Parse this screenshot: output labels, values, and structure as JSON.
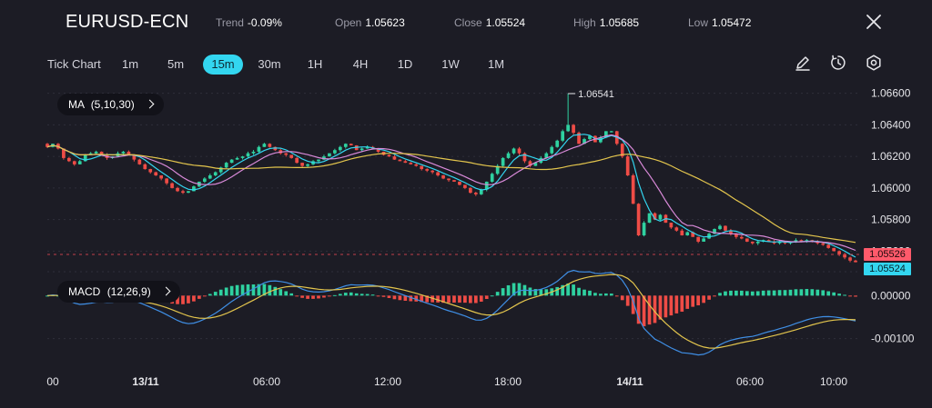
{
  "header": {
    "symbol": "EURUSD-ECN",
    "stats": [
      {
        "label": "Trend",
        "value": "-0.09%"
      },
      {
        "label": "Open",
        "value": "1.05623"
      },
      {
        "label": "Close",
        "value": "1.05524"
      },
      {
        "label": "High",
        "value": "1.05685"
      },
      {
        "label": "Low",
        "value": "1.05472"
      }
    ]
  },
  "toolbar": {
    "tick_chart": "Tick Chart",
    "timeframes": [
      "1m",
      "5m",
      "15m",
      "30m",
      "1H",
      "4H",
      "1D",
      "1W",
      "1M"
    ],
    "active_timeframe": "15m",
    "tools": [
      "pencil-icon",
      "timer-icon",
      "settings-icon"
    ]
  },
  "indicators": {
    "ma_label": "MA",
    "ma_params": "(5,10,30)",
    "macd_label": "MACD",
    "macd_params": "(12,26,9)"
  },
  "price_tags": {
    "bid": "1.05526",
    "ask": "1.05524",
    "peak_label": "1.06541"
  },
  "colors": {
    "background": "#1c1c25",
    "up": "#2fd1a0",
    "down": "#ef4c46",
    "ma_fast": "#33d6f0",
    "ma_mid": "#d98ad9",
    "ma_slow": "#e3c54d",
    "macd_line": "#3f8fe6",
    "signal_line": "#e3c54d",
    "bid_tag": "#ff5a6b",
    "ask_tag": "#33d6f0"
  },
  "chart_data": {
    "type": "candlestick",
    "price_axis": {
      "ticks": [
        "1.06600",
        "1.06400",
        "1.06200",
        "1.06000",
        "1.05800",
        "1.05600"
      ],
      "range": [
        1.0551,
        1.0665
      ]
    },
    "time_axis": {
      "ticks": [
        "00",
        "13/11",
        "06:00",
        "12:00",
        "18:00",
        "14/11",
        "06:00",
        "10:00"
      ],
      "bold": [
        "13/11",
        "14/11"
      ]
    },
    "macd_axis": {
      "ticks": [
        "0.00000",
        "-0.00100"
      ],
      "range": [
        -0.00145,
        0.00045
      ]
    },
    "close": [
      1.0626,
      1.0628,
      1.0625,
      1.0619,
      1.0617,
      1.0615,
      1.0617,
      1.0621,
      1.0622,
      1.0623,
      1.0621,
      1.0619,
      1.062,
      1.0622,
      1.0623,
      1.0621,
      1.0618,
      1.0615,
      1.0612,
      1.061,
      1.0608,
      1.0606,
      1.0603,
      1.06,
      1.0598,
      1.0597,
      1.0598,
      1.0601,
      1.0604,
      1.0606,
      1.0608,
      1.061,
      1.0613,
      1.0616,
      1.0618,
      1.0619,
      1.062,
      1.0622,
      1.0623,
      1.0626,
      1.0628,
      1.0626,
      1.0624,
      1.0622,
      1.0621,
      1.0619,
      1.0616,
      1.0614,
      1.0615,
      1.0617,
      1.0618,
      1.062,
      1.0622,
      1.0624,
      1.0626,
      1.0628,
      1.0627,
      1.0624,
      1.0625,
      1.0626,
      1.0625,
      1.0623,
      1.0621,
      1.062,
      1.0618,
      1.0617,
      1.0616,
      1.0615,
      1.0614,
      1.0612,
      1.0611,
      1.061,
      1.0608,
      1.0606,
      1.0605,
      1.0604,
      1.0602,
      1.06,
      1.0597,
      1.0596,
      1.0599,
      1.0604,
      1.0609,
      1.0614,
      1.0619,
      1.0622,
      1.0625,
      1.0622,
      1.0617,
      1.0614,
      1.0616,
      1.0619,
      1.0622,
      1.0626,
      1.063,
      1.0636,
      1.064,
      1.0635,
      1.0628,
      1.0631,
      1.0633,
      1.0629,
      1.0632,
      1.0636,
      1.0636,
      1.0628,
      1.062,
      1.0608,
      1.059,
      1.057,
      1.0578,
      1.0584,
      1.058,
      1.0583,
      1.0578,
      1.0575,
      1.0573,
      1.057,
      1.0572,
      1.0569,
      1.0566,
      1.0568,
      1.0571,
      1.0574,
      1.0576,
      1.0573,
      1.0571,
      1.0569,
      1.0568,
      1.0566,
      1.0565,
      1.0566,
      1.0567,
      1.0566,
      1.0565,
      1.0566,
      1.0565,
      1.0566,
      1.0567,
      1.0566,
      1.0567,
      1.0566,
      1.0565,
      1.0564,
      1.0562,
      1.056,
      1.0558,
      1.0556,
      1.0554,
      1.0553
    ],
    "ma_periods": [
      5,
      10,
      30
    ],
    "macd_params": [
      12,
      26,
      9
    ]
  }
}
